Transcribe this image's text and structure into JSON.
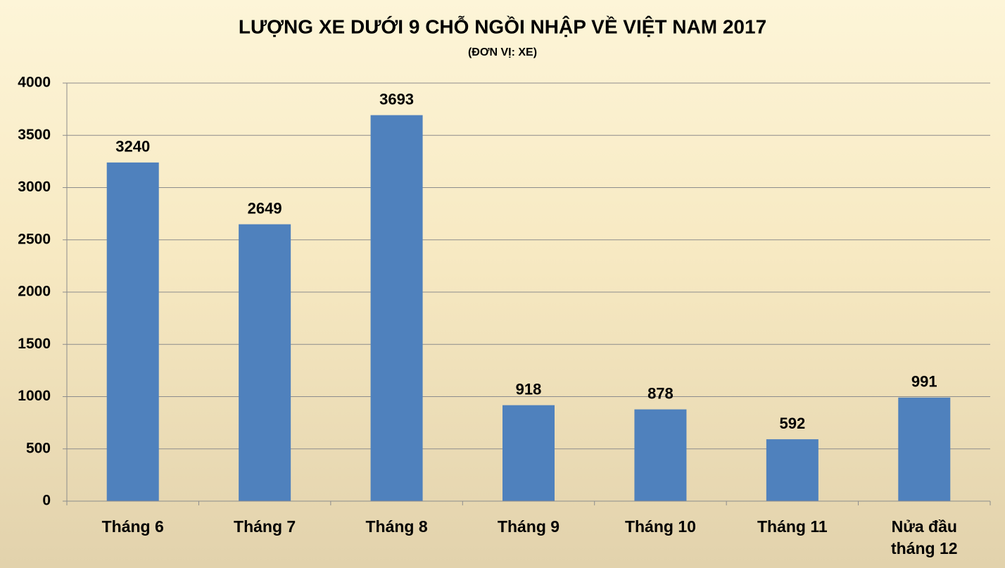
{
  "chart_data": {
    "type": "bar",
    "title": "LƯỢNG XE DƯỚI 9 CHỖ NGỒI NHẬP VỀ VIỆT NAM 2017",
    "subtitle": "(ĐƠN VỊ: XE)",
    "categories": [
      "Tháng 6",
      "Tháng 7",
      "Tháng 8",
      "Tháng 9",
      "Tháng 10",
      "Tháng 11",
      "Nửa đầu tháng 12"
    ],
    "values": [
      3240,
      2649,
      3693,
      918,
      878,
      592,
      991
    ],
    "color": "#4f81bd",
    "ylim": [
      0,
      4000
    ],
    "yticks": [
      0,
      500,
      1000,
      1500,
      2000,
      2500,
      3000,
      3500,
      4000
    ],
    "grid": true
  }
}
